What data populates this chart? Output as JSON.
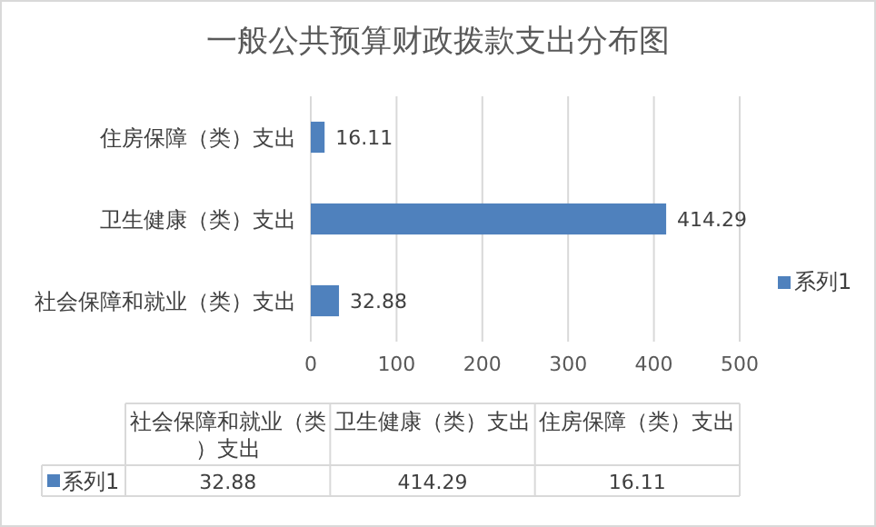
{
  "chart_data": {
    "type": "bar",
    "orientation": "horizontal",
    "title": "一般公共预算财政拨款支出分布图",
    "categories": [
      "住房保障（类）支出",
      "卫生健康（类）支出",
      "社会保障和就业（类）支出"
    ],
    "series": [
      {
        "name": "系列1",
        "color": "#4f81bd",
        "values": [
          16.11,
          414.29,
          32.88
        ],
        "value_labels": [
          "16.11",
          "414.29",
          "32.88"
        ]
      }
    ],
    "xlim": [
      0,
      500
    ],
    "xticks": [
      0,
      100,
      200,
      300,
      400,
      500
    ],
    "grid": "x",
    "legend": "right"
  }
}
